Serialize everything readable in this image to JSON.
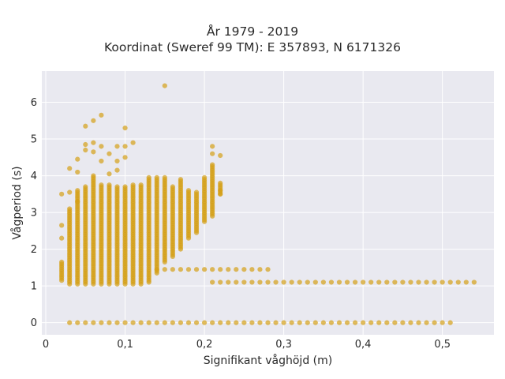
{
  "chart_data": {
    "type": "scatter",
    "title_lines": [
      "År 1979 - 2019",
      "Koordinat (Sweref 99 TM): E 357893, N 6171326"
    ],
    "xlabel": "Signifikant våghöjd (m)",
    "ylabel": "Vågperiod (s)",
    "xlim": [
      -0.005,
      0.565
    ],
    "ylim": [
      -0.33,
      6.85
    ],
    "x_ticks": [
      0,
      0.1,
      0.2,
      0.3,
      0.4,
      0.5
    ],
    "x_tick_labels": [
      "0",
      "0,1",
      "0,2",
      "0,3",
      "0,4",
      "0,5"
    ],
    "y_ticks": [
      0,
      1,
      2,
      3,
      4,
      5,
      6
    ],
    "y_tick_labels": [
      "0",
      "1",
      "2",
      "3",
      "4",
      "5",
      "6"
    ],
    "grid": true,
    "background": "#e9e9f0",
    "grid_color": "#ffffff",
    "marker_color": "#d4a017",
    "marker_opacity": 0.7,
    "zero_row": {
      "y": 0,
      "x_start": 0.03,
      "x_end": 0.51,
      "x_step": 0.01
    },
    "band_rows": [
      {
        "y": 1.45,
        "x_start": 0.14,
        "x_end": 0.28,
        "x_step": 0.01
      },
      {
        "y": 1.1,
        "x_start": 0.21,
        "x_end": 0.54,
        "x_step": 0.01
      }
    ],
    "columns": [
      {
        "x": 0.02,
        "y_min": 1.15,
        "y_max": 1.65
      },
      {
        "x": 0.03,
        "y_min": 1.05,
        "y_max": 3.1
      },
      {
        "x": 0.04,
        "y_min": 1.05,
        "y_max": 3.6
      },
      {
        "x": 0.05,
        "y_min": 1.05,
        "y_max": 3.7
      },
      {
        "x": 0.06,
        "y_min": 1.05,
        "y_max": 4.0
      },
      {
        "x": 0.07,
        "y_min": 1.05,
        "y_max": 3.75
      },
      {
        "x": 0.08,
        "y_min": 1.05,
        "y_max": 3.75
      },
      {
        "x": 0.09,
        "y_min": 1.05,
        "y_max": 3.7
      },
      {
        "x": 0.1,
        "y_min": 1.05,
        "y_max": 3.7
      },
      {
        "x": 0.11,
        "y_min": 1.05,
        "y_max": 3.75
      },
      {
        "x": 0.12,
        "y_min": 1.05,
        "y_max": 3.75
      },
      {
        "x": 0.13,
        "y_min": 1.1,
        "y_max": 3.95
      },
      {
        "x": 0.14,
        "y_min": 1.35,
        "y_max": 3.95
      },
      {
        "x": 0.15,
        "y_min": 1.65,
        "y_max": 3.95
      },
      {
        "x": 0.16,
        "y_min": 1.8,
        "y_max": 3.7
      },
      {
        "x": 0.17,
        "y_min": 2.0,
        "y_max": 3.9
      },
      {
        "x": 0.18,
        "y_min": 2.3,
        "y_max": 3.6
      },
      {
        "x": 0.19,
        "y_min": 2.45,
        "y_max": 3.55
      },
      {
        "x": 0.2,
        "y_min": 2.75,
        "y_max": 3.95
      },
      {
        "x": 0.21,
        "y_min": 2.9,
        "y_max": 4.3
      },
      {
        "x": 0.22,
        "y_min": 3.5,
        "y_max": 3.8
      }
    ],
    "outliers": [
      {
        "x": 0.02,
        "y": 2.3
      },
      {
        "x": 0.02,
        "y": 2.65
      },
      {
        "x": 0.02,
        "y": 3.5
      },
      {
        "x": 0.03,
        "y": 3.55
      },
      {
        "x": 0.03,
        "y": 4.2
      },
      {
        "x": 0.04,
        "y": 3.3
      },
      {
        "x": 0.04,
        "y": 4.45
      },
      {
        "x": 0.04,
        "y": 4.1
      },
      {
        "x": 0.05,
        "y": 4.7
      },
      {
        "x": 0.05,
        "y": 5.35
      },
      {
        "x": 0.05,
        "y": 4.85
      },
      {
        "x": 0.06,
        "y": 4.9
      },
      {
        "x": 0.06,
        "y": 4.65
      },
      {
        "x": 0.06,
        "y": 5.5
      },
      {
        "x": 0.07,
        "y": 5.65
      },
      {
        "x": 0.07,
        "y": 4.8
      },
      {
        "x": 0.07,
        "y": 4.4
      },
      {
        "x": 0.08,
        "y": 4.6
      },
      {
        "x": 0.08,
        "y": 4.05
      },
      {
        "x": 0.09,
        "y": 4.8
      },
      {
        "x": 0.09,
        "y": 4.4
      },
      {
        "x": 0.09,
        "y": 4.15
      },
      {
        "x": 0.1,
        "y": 5.3
      },
      {
        "x": 0.1,
        "y": 4.8
      },
      {
        "x": 0.1,
        "y": 4.5
      },
      {
        "x": 0.11,
        "y": 4.9
      },
      {
        "x": 0.15,
        "y": 6.45
      },
      {
        "x": 0.21,
        "y": 4.8
      },
      {
        "x": 0.21,
        "y": 4.6
      },
      {
        "x": 0.22,
        "y": 4.55
      },
      {
        "x": 0.22,
        "y": 3.6
      },
      {
        "x": 0.22,
        "y": 3.5
      }
    ]
  }
}
